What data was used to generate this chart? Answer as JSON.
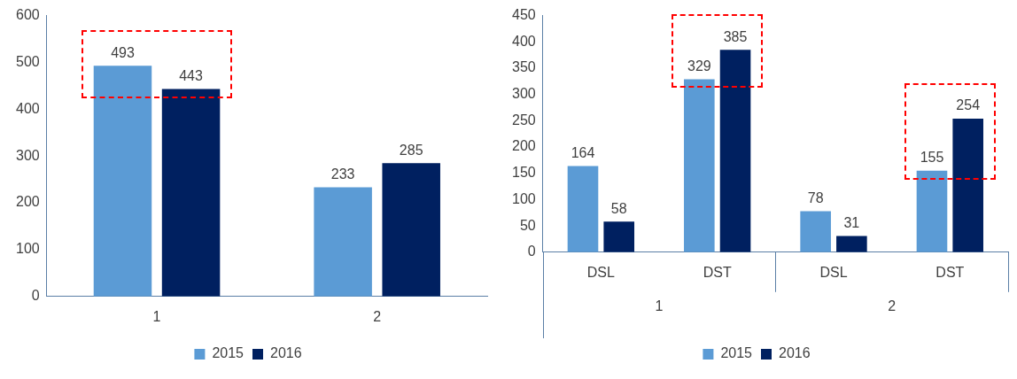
{
  "chart_data": [
    {
      "type": "bar",
      "categories": [
        "1",
        "2"
      ],
      "series": [
        {
          "name": "2015",
          "color": "#5b9bd5",
          "values": [
            493,
            233
          ]
        },
        {
          "name": "2016",
          "color": "#002060",
          "values": [
            443,
            285
          ]
        }
      ],
      "ylim": [
        0,
        600
      ],
      "yticks": [
        0,
        100,
        200,
        300,
        400,
        500,
        600
      ],
      "data_labels": true,
      "legend": "bottom"
    },
    {
      "type": "bar",
      "categories": [
        "DSL",
        "DST",
        "DSL",
        "DST"
      ],
      "annotations": [
        "1",
        "2"
      ],
      "series": [
        {
          "name": "2015",
          "color": "#5b9bd5",
          "values": [
            164,
            329,
            78,
            155
          ]
        },
        {
          "name": "2016",
          "color": "#002060",
          "values": [
            58,
            385,
            31,
            254
          ]
        }
      ],
      "ylim": [
        0,
        450
      ],
      "yticks": [
        0,
        50,
        100,
        150,
        200,
        250,
        300,
        350,
        400,
        450
      ],
      "data_labels": true,
      "legend": "bottom"
    }
  ]
}
